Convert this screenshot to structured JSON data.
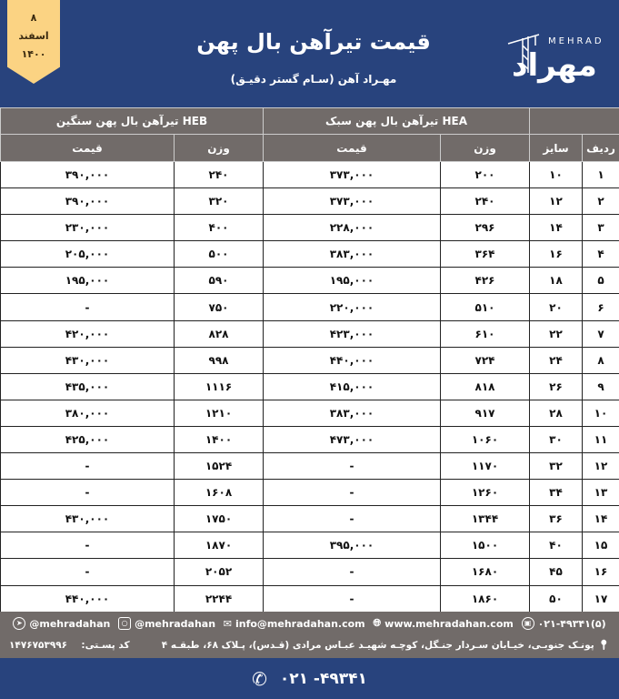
{
  "date": {
    "day": "۸",
    "month": "اسفند",
    "year": "۱۴۰۰"
  },
  "header": {
    "title": "قیمت تیرآهن بال پهن",
    "subtitle": "مهـراد آهن   (سـام گستر دقیـق)",
    "logo_en": "MEHRAD",
    "logo_fa": "مهراد"
  },
  "colors": {
    "header_bg": "#28437d",
    "table_header_bg": "#716b69",
    "badge": "#fbd383"
  },
  "table": {
    "group_heb": "تیرآهن بال پهن سنگین HEB",
    "group_hea": "تیرآهن بال پهن سبک HEA",
    "col_price": "قیمت",
    "col_weight": "وزن",
    "col_size": "سایز",
    "col_row": "ردیف",
    "rows": [
      {
        "n": "۱",
        "size": "۱۰",
        "hea_w": "۲۰۰",
        "hea_p": "۳۷۳,۰۰۰",
        "heb_w": "۲۴۰",
        "heb_p": "۳۹۰,۰۰۰"
      },
      {
        "n": "۲",
        "size": "۱۲",
        "hea_w": "۲۴۰",
        "hea_p": "۳۷۳,۰۰۰",
        "heb_w": "۳۲۰",
        "heb_p": "۳۹۰,۰۰۰"
      },
      {
        "n": "۳",
        "size": "۱۴",
        "hea_w": "۲۹۶",
        "hea_p": "۲۲۸,۰۰۰",
        "heb_w": "۴۰۰",
        "heb_p": "۲۳۰,۰۰۰"
      },
      {
        "n": "۴",
        "size": "۱۶",
        "hea_w": "۳۶۴",
        "hea_p": "۳۸۳,۰۰۰",
        "heb_w": "۵۰۰",
        "heb_p": "۲۰۵,۰۰۰"
      },
      {
        "n": "۵",
        "size": "۱۸",
        "hea_w": "۴۲۶",
        "hea_p": "۱۹۵,۰۰۰",
        "heb_w": "۵۹۰",
        "heb_p": "۱۹۵,۰۰۰"
      },
      {
        "n": "۶",
        "size": "۲۰",
        "hea_w": "۵۱۰",
        "hea_p": "۲۲۰,۰۰۰",
        "heb_w": "۷۵۰",
        "heb_p": "-"
      },
      {
        "n": "۷",
        "size": "۲۲",
        "hea_w": "۶۱۰",
        "hea_p": "۴۲۳,۰۰۰",
        "heb_w": "۸۲۸",
        "heb_p": "۴۲۰,۰۰۰"
      },
      {
        "n": "۸",
        "size": "۲۴",
        "hea_w": "۷۲۴",
        "hea_p": "۴۴۰,۰۰۰",
        "heb_w": "۹۹۸",
        "heb_p": "۴۳۰,۰۰۰"
      },
      {
        "n": "۹",
        "size": "۲۶",
        "hea_w": "۸۱۸",
        "hea_p": "۴۱۵,۰۰۰",
        "heb_w": "۱۱۱۶",
        "heb_p": "۴۳۵,۰۰۰"
      },
      {
        "n": "۱۰",
        "size": "۲۸",
        "hea_w": "۹۱۷",
        "hea_p": "۳۸۳,۰۰۰",
        "heb_w": "۱۲۱۰",
        "heb_p": "۳۸۰,۰۰۰"
      },
      {
        "n": "۱۱",
        "size": "۳۰",
        "hea_w": "۱۰۶۰",
        "hea_p": "۴۷۳,۰۰۰",
        "heb_w": "۱۴۰۰",
        "heb_p": "۴۲۵,۰۰۰"
      },
      {
        "n": "۱۲",
        "size": "۳۲",
        "hea_w": "۱۱۷۰",
        "hea_p": "-",
        "heb_w": "۱۵۲۴",
        "heb_p": "-"
      },
      {
        "n": "۱۳",
        "size": "۳۴",
        "hea_w": "۱۲۶۰",
        "hea_p": "-",
        "heb_w": "۱۶۰۸",
        "heb_p": "-"
      },
      {
        "n": "۱۴",
        "size": "۳۶",
        "hea_w": "۱۳۴۴",
        "hea_p": "-",
        "heb_w": "۱۷۵۰",
        "heb_p": "۴۳۰,۰۰۰"
      },
      {
        "n": "۱۵",
        "size": "۴۰",
        "hea_w": "۱۵۰۰",
        "hea_p": "۳۹۵,۰۰۰",
        "heb_w": "۱۸۷۰",
        "heb_p": "-"
      },
      {
        "n": "۱۶",
        "size": "۴۵",
        "hea_w": "۱۶۸۰",
        "hea_p": "-",
        "heb_w": "۲۰۵۲",
        "heb_p": "-"
      },
      {
        "n": "۱۷",
        "size": "۵۰",
        "hea_w": "۱۸۶۰",
        "hea_p": "-",
        "heb_w": "۲۲۴۴",
        "heb_p": "۴۴۰,۰۰۰"
      }
    ]
  },
  "footer": {
    "telegram": "@mehradahan",
    "instagram": "@mehradahan",
    "email": "info@mehradahan.com",
    "website": "www.mehradahan.com",
    "fax": "۰۲۱-۴۹۳۴۱(۵)",
    "address": "پونـک جنوبـی، خیـابان سـردار جنـگل، کوچـه شهیـد عبـاس مرادی (قـدس)، پـلاک ۶۸، طبقـه ۴",
    "postal_label": "کد پسـتی:",
    "postal_code": "۱۴۷۶۷۵۳۹۹۶",
    "phone": "۰۲۱ -۴۹۳۴۱"
  }
}
